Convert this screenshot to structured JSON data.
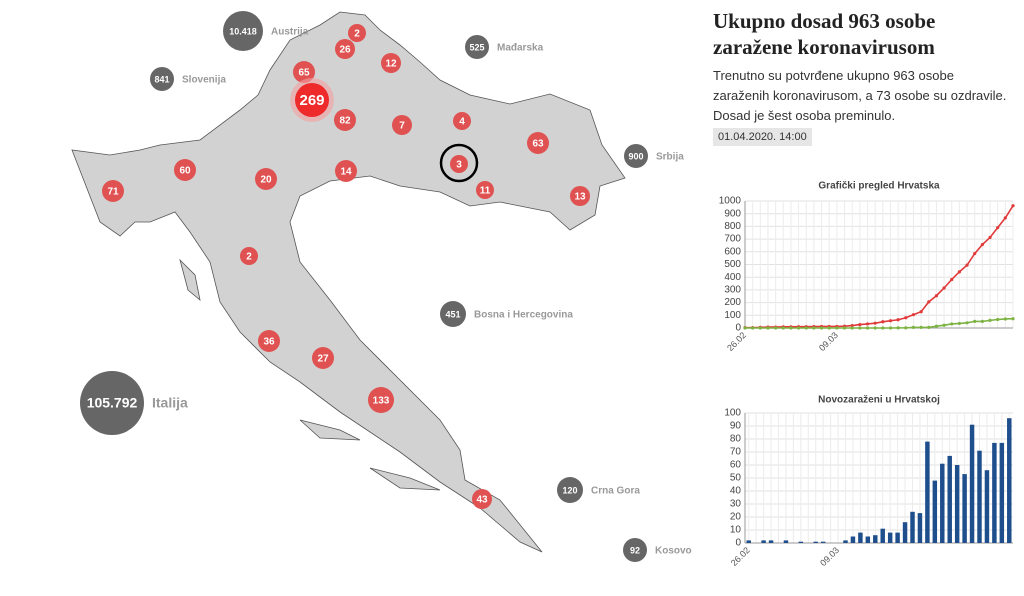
{
  "header": {
    "title": "Ukupno dosad 963 osobe zaražene koronavirusom",
    "text": "Trenutno su potvrđene ukupno 963 osobe zaraženih koronavirusom, a 73 osobe su ozdravile. Dosad je šest osoba preminulo.",
    "date": "01.04.2020. 14:00"
  },
  "map": {
    "regions": [
      "2",
      "26",
      "12",
      "65",
      "269",
      "82",
      "7",
      "4",
      "63",
      "3",
      "11",
      "13",
      "60",
      "71",
      "20",
      "14",
      "2",
      "36",
      "27",
      "133",
      "43"
    ],
    "countries": [
      {
        "value": "10.418",
        "name": "Austrija"
      },
      {
        "value": "525",
        "name": "Mađarska"
      },
      {
        "value": "841",
        "name": "Slovenija"
      },
      {
        "value": "900",
        "name": "Srbija"
      },
      {
        "value": "451",
        "name": "Bosna i Hercegovina"
      },
      {
        "value": "105.792",
        "name": "Italija"
      },
      {
        "value": "120",
        "name": "Crna Gora"
      },
      {
        "value": "92",
        "name": "Kosovo"
      }
    ]
  },
  "chart_data": [
    {
      "type": "line",
      "title": "Grafički pregled Hrvatska",
      "categories": [
        "26.02",
        null,
        null,
        null,
        null,
        null,
        null,
        null,
        null,
        null,
        null,
        null,
        "09.03",
        null,
        null,
        null,
        null,
        null,
        null,
        null,
        null,
        null,
        null,
        null,
        null,
        null,
        null,
        null,
        null,
        null,
        null,
        null,
        null,
        null,
        null,
        null
      ],
      "series": [
        {
          "color": "#e03a3a",
          "values": [
            3,
            3,
            5,
            7,
            7,
            9,
            9,
            10,
            10,
            11,
            12,
            12,
            12,
            14,
            19,
            27,
            32,
            38,
            49,
            57,
            65,
            81,
            105,
            128,
            206,
            254,
            315,
            382,
            442,
            495,
            586,
            657,
            713,
            790,
            867,
            963
          ]
        },
        {
          "color": "#7cb342",
          "values": [
            0,
            0,
            0,
            0,
            0,
            0,
            0,
            0,
            0,
            0,
            0,
            0,
            0,
            0,
            0,
            0,
            0,
            0,
            0,
            0,
            1,
            1,
            5,
            5,
            5,
            14,
            22,
            32,
            36,
            41,
            52,
            52,
            60,
            67,
            71,
            73
          ]
        }
      ],
      "ylim": [
        0,
        1000
      ],
      "yticks": [
        0,
        100,
        200,
        300,
        400,
        500,
        600,
        700,
        800,
        900,
        1000
      ],
      "grid": true
    },
    {
      "type": "bar",
      "title": "Novozaraženi u Hrvatskoj",
      "categories": [
        "26.02",
        null,
        null,
        null,
        null,
        null,
        null,
        null,
        null,
        null,
        null,
        null,
        "09.03",
        null,
        null,
        null,
        null,
        null,
        null,
        null,
        null,
        null,
        null,
        null,
        null,
        null,
        null,
        null,
        null,
        null,
        null,
        null,
        null,
        null,
        null,
        null
      ],
      "series": [
        {
          "color": "#1f4e8c",
          "values": [
            2,
            0,
            2,
            2,
            0,
            2,
            0,
            1,
            0,
            1,
            1,
            0,
            0,
            2,
            5,
            8,
            5,
            6,
            11,
            8,
            8,
            16,
            24,
            23,
            78,
            48,
            61,
            67,
            60,
            53,
            91,
            71,
            56,
            77,
            77,
            96
          ]
        }
      ],
      "ylim": [
        0,
        100
      ],
      "yticks": [
        0,
        10,
        20,
        30,
        40,
        50,
        60,
        70,
        80,
        90,
        100
      ],
      "grid": true
    }
  ]
}
